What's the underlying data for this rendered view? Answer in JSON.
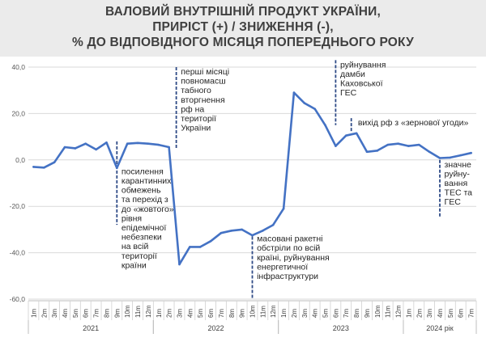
{
  "title": {
    "line1": "ВАЛОВИЙ ВНУТРІШНІЙ ПРОДУКТ УКРАЇНИ,",
    "line2": "ПРИРІСТ (+) / ЗНИЖЕННЯ (-),",
    "line3": "% ДО ВІДПОВІДНОГО МІСЯЦЯ ПОПЕРЕДНЬОГО РОКУ"
  },
  "colors": {
    "line": "#4472c4",
    "annotation_line": "#2e4a86",
    "grid": "#d9d9d9",
    "title_bg": "#ebebeb"
  },
  "chart_data": {
    "type": "line",
    "ylim": [
      -60,
      40
    ],
    "yticks": [
      "40,0",
      "20,0",
      "0,0",
      "-20,0",
      "-40,0",
      "-60,0"
    ],
    "ytick_values": [
      40,
      20,
      0,
      -20,
      -40,
      -60
    ],
    "grid": true,
    "x": [
      "1m",
      "2m",
      "3m",
      "4m",
      "5m",
      "6m",
      "7m",
      "8m",
      "9m",
      "10m",
      "11m",
      "12m",
      "1m",
      "2m",
      "3m",
      "4m",
      "5m",
      "6m",
      "7m",
      "8m",
      "9m",
      "10m",
      "11m",
      "12m",
      "1m",
      "2m",
      "3m",
      "4m",
      "5m",
      "6m",
      "7m",
      "8m",
      "9m",
      "10m",
      "11m",
      "12m",
      "1m",
      "2m",
      "3m",
      "4m",
      "5m",
      "6m",
      "7m"
    ],
    "years": [
      {
        "label": "2021",
        "start": 0,
        "count": 12
      },
      {
        "label": "2022",
        "start": 12,
        "count": 12
      },
      {
        "label": "2023",
        "start": 24,
        "count": 12
      },
      {
        "label": "2024 рік",
        "start": 36,
        "count": 7
      }
    ],
    "series": [
      {
        "values": [
          -3,
          -3.3,
          -1,
          5.5,
          5,
          7,
          4.5,
          7.5,
          -3.5,
          7,
          7.3,
          7,
          6.5,
          5.5,
          -45,
          -37.5,
          -37.5,
          -35,
          -31.5,
          -30.5,
          -30,
          -32.5,
          -30.5,
          -28,
          -21,
          29,
          24.5,
          22,
          15,
          6,
          10.5,
          11.5,
          3.5,
          4,
          6.5,
          7,
          6,
          6.5,
          3.5,
          0.8,
          1,
          2,
          3
        ]
      }
    ],
    "annotations": [
      {
        "index": 8,
        "line_from": 8,
        "line_to": -28,
        "text_x_index": 8.2,
        "text_y": -3,
        "lines": [
          "посилення",
          "карантинних",
          "обмежень",
          "та перехід з",
          "до «жовтого»",
          "рівня",
          "епідемічної",
          "небезпеки",
          "на всій",
          "території",
          "країни"
        ]
      },
      {
        "index": 13.7,
        "line_from": 40,
        "line_to": 5,
        "text_x_index": 13.9,
        "text_y": 40,
        "lines": [
          "перші місяці",
          "повномасш",
          "табного",
          "вторгнення",
          "рф на",
          "території",
          "України"
        ]
      },
      {
        "index": 21,
        "line_from": -33,
        "line_to": -60,
        "text_x_index": 21.2,
        "text_y": -32,
        "lines": [
          "масовані ракетні",
          "обстріли по всій",
          "країні, руйнування",
          "енергетичної",
          "інфраструктури"
        ]
      },
      {
        "index": 29,
        "line_from": 43,
        "line_to": 15,
        "text_x_index": 29.2,
        "text_y": 43,
        "lines": [
          "руйнування",
          "дамби",
          "Каховської",
          "ГЕС"
        ]
      },
      {
        "index": 30.5,
        "line_from": 18,
        "line_to": 12,
        "text_x_index": 30.9,
        "text_y": 18,
        "lines": [
          "вихід рф з «зернової угоди»"
        ]
      },
      {
        "index": 39,
        "line_from": 0,
        "line_to": -25,
        "text_x_index": 39.2,
        "text_y": 0,
        "lines": [
          "значне",
          "руйну-",
          "вання",
          "ТЕС та",
          "ГЕС"
        ]
      }
    ]
  }
}
